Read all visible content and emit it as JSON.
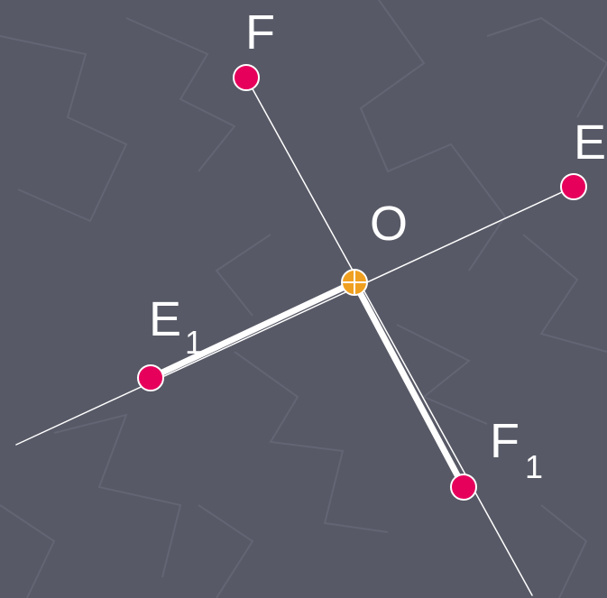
{
  "points": [
    {
      "label": {
        "main": "F"
      }
    },
    {
      "label": {
        "main": "E"
      }
    },
    {
      "label": {
        "main": "O"
      }
    },
    {
      "label": {
        "main": "E",
        "sub": "1"
      }
    },
    {
      "label": {
        "main": "F",
        "sub": "1"
      }
    }
  ]
}
